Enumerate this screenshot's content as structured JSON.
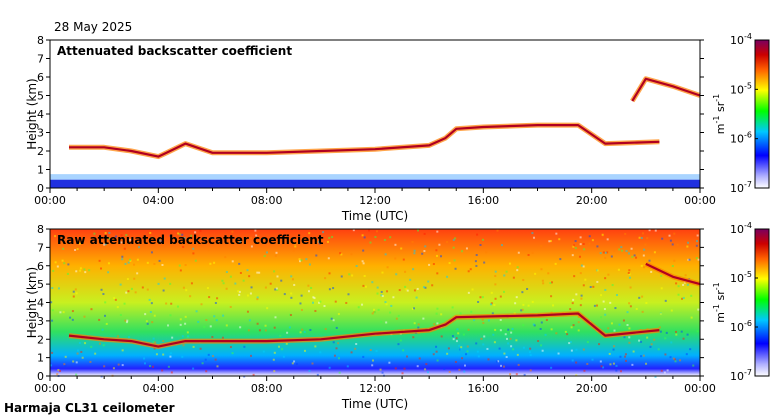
{
  "header": {
    "date": "28 May 2025"
  },
  "footer": {
    "instrument": "Harmaja CL31 ceilometer"
  },
  "chart_data": [
    {
      "type": "heatmap",
      "title": "Attenuated backscatter coefficient",
      "xlabel": "Time (UTC)",
      "ylabel": "Height (km)",
      "x_ticks": [
        "00:00",
        "04:00",
        "08:00",
        "12:00",
        "16:00",
        "20:00",
        "00:00"
      ],
      "y_ticks": [
        "0",
        "1",
        "2",
        "3",
        "4",
        "5",
        "6",
        "7",
        "8"
      ],
      "xlim_hours": [
        0,
        24
      ],
      "ylim_km": [
        0,
        8
      ],
      "colorbar": {
        "scale": "log",
        "labels": [
          "10^-4",
          "10^-5",
          "10^-6",
          "10^-7"
        ],
        "unit": "m^-1 sr^-1"
      },
      "features": [
        {
          "name": "low layer",
          "points": [
            [
              0.7,
              2.2
            ],
            [
              2,
              2.2
            ],
            [
              3,
              2.0
            ],
            [
              4,
              1.7
            ],
            [
              4.3,
              1.9
            ],
            [
              5,
              2.4
            ],
            [
              6,
              1.9
            ],
            [
              8,
              1.9
            ],
            [
              10,
              2.0
            ],
            [
              12,
              2.1
            ],
            [
              14,
              2.3
            ],
            [
              14.6,
              2.7
            ],
            [
              15,
              3.2
            ],
            [
              16,
              3.3
            ],
            [
              18,
              3.4
            ],
            [
              19.5,
              3.4
            ],
            [
              20.5,
              2.4
            ],
            [
              22.5,
              2.5
            ]
          ]
        },
        {
          "name": "upper layer",
          "points": [
            [
              21.5,
              4.7
            ],
            [
              22,
              5.9
            ],
            [
              23,
              5.5
            ],
            [
              24,
              5.0
            ]
          ]
        }
      ]
    },
    {
      "type": "heatmap",
      "title": "Raw attenuated backscatter coefficient",
      "xlabel": "Time (UTC)",
      "ylabel": "Height (km)",
      "x_ticks": [
        "00:00",
        "04:00",
        "08:00",
        "12:00",
        "16:00",
        "20:00",
        "00:00"
      ],
      "y_ticks": [
        "0",
        "1",
        "2",
        "3",
        "4",
        "5",
        "6",
        "7",
        "8"
      ],
      "xlim_hours": [
        0,
        24
      ],
      "ylim_km": [
        0,
        8
      ],
      "colorbar": {
        "scale": "log",
        "labels": [
          "10^-4",
          "10^-5",
          "10^-6",
          "10^-7"
        ],
        "unit": "m^-1 sr^-1"
      },
      "features": [
        {
          "name": "low layer",
          "points": [
            [
              0.7,
              2.2
            ],
            [
              2,
              2.0
            ],
            [
              3,
              1.9
            ],
            [
              4,
              1.6
            ],
            [
              5,
              1.9
            ],
            [
              8,
              1.9
            ],
            [
              10,
              2.0
            ],
            [
              12,
              2.3
            ],
            [
              14,
              2.5
            ],
            [
              14.6,
              2.8
            ],
            [
              15,
              3.2
            ],
            [
              18,
              3.3
            ],
            [
              19.5,
              3.4
            ],
            [
              20.5,
              2.2
            ],
            [
              22.5,
              2.5
            ]
          ]
        },
        {
          "name": "upper layer",
          "points": [
            [
              22,
              6.1
            ],
            [
              23,
              5.4
            ],
            [
              24,
              5.0
            ]
          ]
        }
      ]
    }
  ]
}
